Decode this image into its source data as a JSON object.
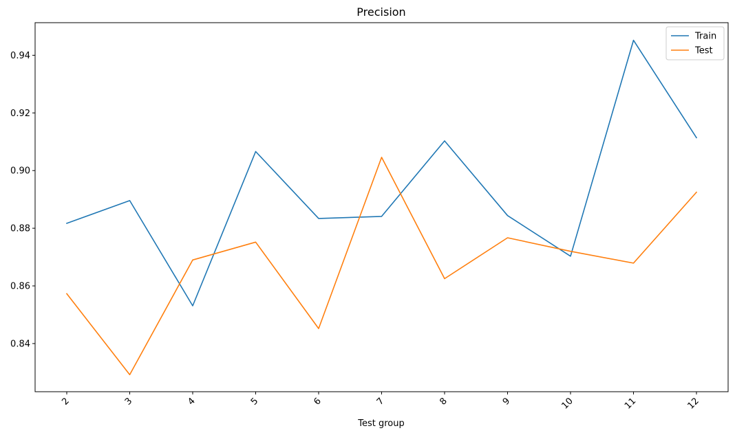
{
  "chart_data": {
    "type": "line",
    "title": "Precision",
    "xlabel": "Test group",
    "ylabel": "",
    "categories": [
      "2",
      "3",
      "4",
      "5",
      "6",
      "7",
      "8",
      "9",
      "10",
      "11",
      "12"
    ],
    "yticks": [
      "0.84",
      "0.86",
      "0.88",
      "0.90",
      "0.92",
      "0.94"
    ],
    "ylim": [
      0.8233,
      0.9513
    ],
    "grid": false,
    "legend_position": "top-right",
    "series": [
      {
        "name": "Train",
        "color": "#1f77b4",
        "values": [
          0.8817,
          0.8896,
          0.8531,
          0.9066,
          0.8834,
          0.8841,
          0.9103,
          0.8844,
          0.8703,
          0.9452,
          0.9114
        ]
      },
      {
        "name": "Test",
        "color": "#ff7f0e",
        "values": [
          0.8573,
          0.8292,
          0.869,
          0.8752,
          0.8452,
          0.9046,
          0.8625,
          0.8767,
          0.872,
          0.8679,
          0.8925
        ]
      }
    ]
  }
}
